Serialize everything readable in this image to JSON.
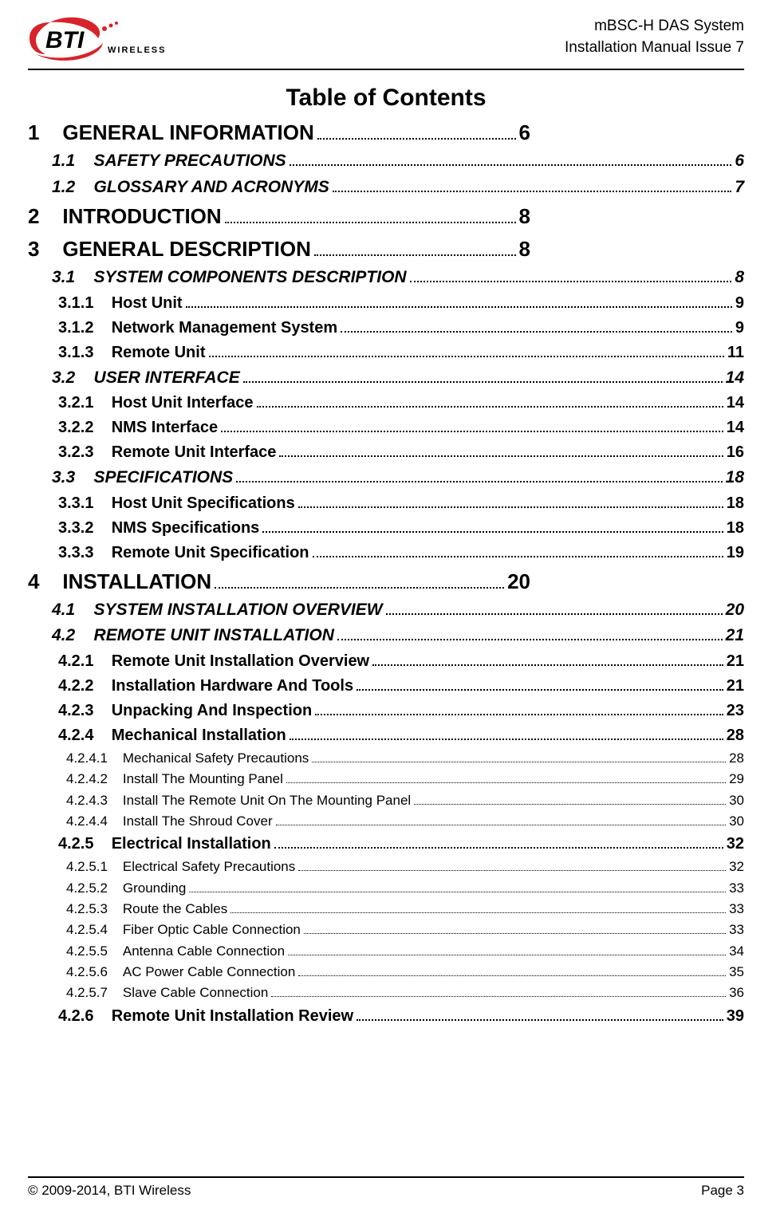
{
  "header": {
    "line1": "mBSC-H DAS System",
    "line2": "Installation Manual Issue 7",
    "logo_text_bti": "BTI",
    "logo_text_wireless": "WIRELESS"
  },
  "toc_title": "Table of Contents",
  "toc": [
    {
      "level": 1,
      "num": "1",
      "title": "GENERAL INFORMATION",
      "page": "6"
    },
    {
      "level": 2,
      "num": "1.1",
      "title": "SAFETY PRECAUTIONS",
      "page": "6"
    },
    {
      "level": 2,
      "num": "1.2",
      "title": "GLOSSARY AND ACRONYMS",
      "page": "7"
    },
    {
      "level": 1,
      "num": "2",
      "title": "INTRODUCTION",
      "page": "8"
    },
    {
      "level": 1,
      "num": "3",
      "title": "GENERAL DESCRIPTION",
      "page": "8"
    },
    {
      "level": 2,
      "num": "3.1",
      "title": "SYSTEM COMPONENTS DESCRIPTION",
      "page": "8"
    },
    {
      "level": 3,
      "num": "3.1.1",
      "title": "Host Unit",
      "page": "9"
    },
    {
      "level": 3,
      "num": "3.1.2",
      "title": "Network Management System",
      "page": "9"
    },
    {
      "level": 3,
      "num": "3.1.3",
      "title": "Remote Unit",
      "page": "11"
    },
    {
      "level": 2,
      "num": "3.2",
      "title": "USER INTERFACE",
      "page": "14"
    },
    {
      "level": 3,
      "num": "3.2.1",
      "title": "Host Unit Interface",
      "page": "14"
    },
    {
      "level": 3,
      "num": "3.2.2",
      "title": "NMS Interface",
      "page": "14"
    },
    {
      "level": 3,
      "num": "3.2.3",
      "title": "Remote Unit Interface",
      "page": "16"
    },
    {
      "level": 2,
      "num": "3.3",
      "title": "SPECIFICATIONS",
      "page": "18"
    },
    {
      "level": 3,
      "num": "3.3.1",
      "title": "Host Unit Specifications",
      "page": "18"
    },
    {
      "level": 3,
      "num": "3.3.2",
      "title": "NMS Specifications",
      "page": "18"
    },
    {
      "level": 3,
      "num": "3.3.3",
      "title": "Remote Unit Specification",
      "page": "19"
    },
    {
      "level": 1,
      "num": "4",
      "title": "INSTALLATION",
      "page": "20"
    },
    {
      "level": 2,
      "num": "4.1",
      "title": "SYSTEM INSTALLATION OVERVIEW",
      "page": "20"
    },
    {
      "level": 2,
      "num": "4.2",
      "title": "REMOTE UNIT INSTALLATION",
      "page": "21"
    },
    {
      "level": 3,
      "num": "4.2.1",
      "title": "Remote Unit Installation Overview",
      "page": "21"
    },
    {
      "level": 3,
      "num": "4.2.2",
      "title": "Installation Hardware And Tools",
      "page": "21"
    },
    {
      "level": 3,
      "num": "4.2.3",
      "title": "Unpacking And Inspection",
      "page": "23"
    },
    {
      "level": 3,
      "num": "4.2.4",
      "title": "Mechanical Installation",
      "page": "28"
    },
    {
      "level": 4,
      "num": "4.2.4.1",
      "title": "Mechanical Safety Precautions",
      "page": "28"
    },
    {
      "level": 4,
      "num": "4.2.4.2",
      "title": "Install The Mounting Panel",
      "page": "29"
    },
    {
      "level": 4,
      "num": "4.2.4.3",
      "title": "Install The Remote Unit On The Mounting Panel",
      "page": "30"
    },
    {
      "level": 4,
      "num": "4.2.4.4",
      "title": "Install The Shroud Cover",
      "page": "30"
    },
    {
      "level": 3,
      "num": "4.2.5",
      "title": "Electrical Installation",
      "page": "32"
    },
    {
      "level": 4,
      "num": "4.2.5.1",
      "title": "Electrical Safety Precautions",
      "page": "32"
    },
    {
      "level": 4,
      "num": "4.2.5.2",
      "title": "Grounding",
      "page": "33"
    },
    {
      "level": 4,
      "num": "4.2.5.3",
      "title": "Route the Cables",
      "page": "33"
    },
    {
      "level": 4,
      "num": "4.2.5.4",
      "title": "Fiber Optic Cable Connection",
      "page": "33"
    },
    {
      "level": 4,
      "num": "4.2.5.5",
      "title": "Antenna Cable Connection",
      "page": "34"
    },
    {
      "level": 4,
      "num": "4.2.5.6",
      "title": "AC Power Cable Connection",
      "page": "35"
    },
    {
      "level": 4,
      "num": "4.2.5.7",
      "title": "Slave Cable Connection",
      "page": "36"
    },
    {
      "level": 3,
      "num": "4.2.6",
      "title": "Remote Unit Installation Review",
      "page": "39"
    }
  ],
  "footer": {
    "left": "© 2009-2014, BTI Wireless",
    "right": "Page 3"
  },
  "colors": {
    "logo_red": "#d8232a",
    "text": "#000000",
    "background": "#ffffff"
  }
}
